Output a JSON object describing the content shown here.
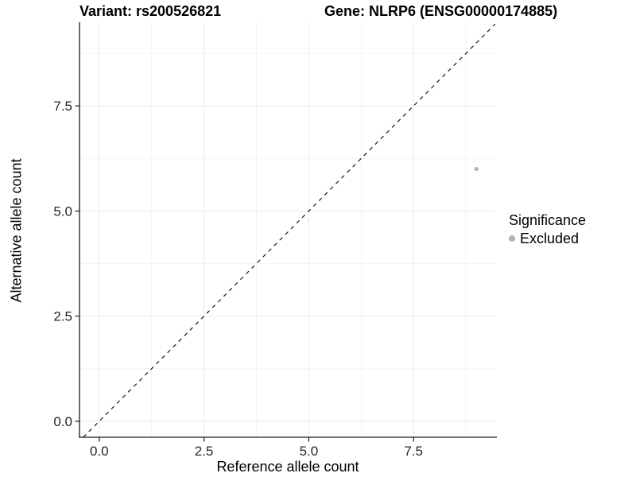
{
  "titles": {
    "variant": "Variant: rs200526821",
    "gene": "Gene: NLRP6 (ENSG00000174885)"
  },
  "axes": {
    "x_label": "Reference allele count",
    "y_label": "Alternative allele count",
    "x_ticks": [
      "0.0",
      "2.5",
      "5.0",
      "7.5"
    ],
    "y_ticks": [
      "0.0",
      "2.5",
      "5.0",
      "7.5"
    ]
  },
  "legend": {
    "title": "Significance",
    "items": [
      {
        "label": "Excluded",
        "color": "#b3b3b3"
      }
    ]
  },
  "colors": {
    "background": "#ffffff",
    "grid_major": "#ebebeb",
    "grid_minor": "#f1f1f1",
    "axis_line": "#1a1a1a",
    "tick_mark": "#1a1a1a",
    "tick_text": "#262626",
    "dashed_line": "#1a1a1a",
    "point": "#b3b3b3"
  },
  "chart_data": {
    "type": "scatter",
    "title": "Variant: rs200526821 | Gene: NLRP6 (ENSG00000174885)",
    "xlabel": "Reference allele count",
    "ylabel": "Alternative allele count",
    "xlim": [
      -0.47,
      9.45
    ],
    "ylim": [
      -0.38,
      9.49
    ],
    "x_breaks": [
      0,
      2.5,
      5,
      7.5
    ],
    "y_breaks": [
      0,
      2.5,
      5,
      7.5
    ],
    "x_minor_breaks": [
      1.25,
      3.75,
      6.25,
      8.75
    ],
    "y_minor_breaks": [
      1.25,
      3.75,
      6.25,
      8.75
    ],
    "grid": true,
    "legend_position": "right",
    "series": [
      {
        "name": "Excluded",
        "color": "#b3b3b3",
        "points": [
          {
            "x": 9,
            "y": 6
          }
        ]
      }
    ],
    "reference_line": {
      "type": "identity_y_equals_x",
      "slope": 1,
      "intercept": 0,
      "style": "dashed",
      "color": "#1a1a1a"
    }
  }
}
